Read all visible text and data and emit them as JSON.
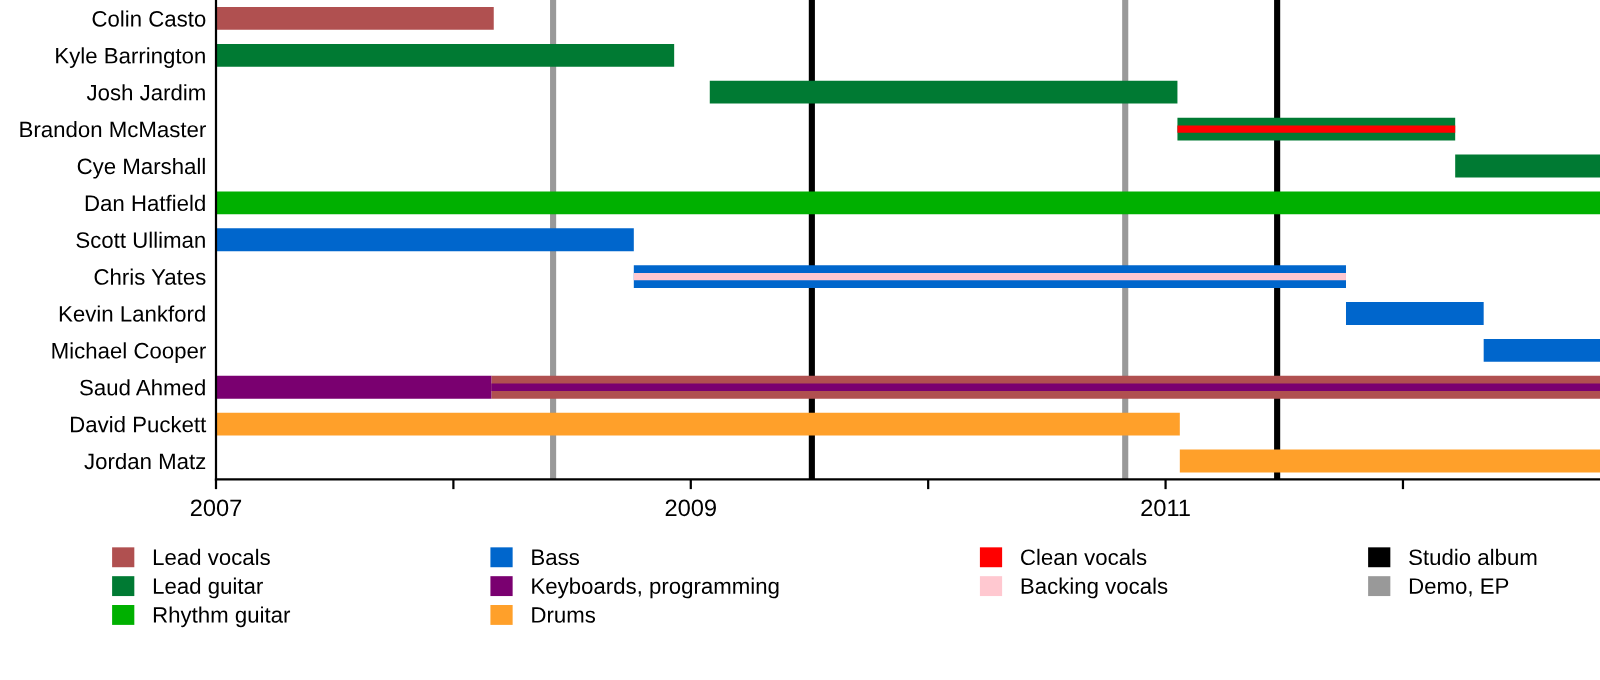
{
  "chart_data": {
    "type": "bar",
    "orientation": "horizontal",
    "categories": [
      "Colin Casto",
      "Kyle Barrington",
      "Josh Jardim",
      "Brandon McMaster",
      "Cye Marshall",
      "Dan Hatfield",
      "Scott Ulliman",
      "Chris Yates",
      "Kevin Lankford",
      "Michael Cooper",
      "Saud Ahmed",
      "David Puckett",
      "Jordan Matz"
    ],
    "series": [
      {
        "name": "Lead vocals",
        "color": "#b05050",
        "base": [
          2007,
          null,
          null,
          null,
          null,
          null,
          null,
          null,
          null,
          null,
          2008.16,
          null,
          null
        ],
        "values": [
          1.17,
          null,
          null,
          null,
          null,
          null,
          null,
          null,
          null,
          null,
          4.67,
          null,
          null
        ]
      },
      {
        "name": "Lead guitar",
        "color": "#007a33",
        "base": [
          null,
          2007,
          2009.08,
          2011.05,
          2012.22,
          null,
          null,
          null,
          null,
          null,
          null,
          null,
          null
        ],
        "values": [
          null,
          1.93,
          1.97,
          1.17,
          0.61,
          null,
          null,
          null,
          null,
          null,
          null,
          null,
          null
        ]
      },
      {
        "name": "Rhythm guitar",
        "color": "#00b000",
        "base": [
          null,
          null,
          null,
          null,
          null,
          2007,
          null,
          null,
          null,
          null,
          null,
          null,
          null
        ],
        "values": [
          null,
          null,
          null,
          null,
          null,
          5.83,
          null,
          null,
          null,
          null,
          null,
          null,
          null
        ]
      },
      {
        "name": "Bass",
        "color": "#0066cc",
        "base": [
          null,
          null,
          null,
          null,
          null,
          null,
          2007,
          2008.76,
          2011.76,
          2012.34,
          null,
          null,
          null
        ],
        "values": [
          null,
          null,
          null,
          null,
          null,
          null,
          1.76,
          3.0,
          0.58,
          0.49,
          null,
          null,
          null
        ]
      },
      {
        "name": "Keyboards, programming",
        "color": "#7a0070",
        "base": [
          null,
          null,
          null,
          null,
          null,
          null,
          null,
          null,
          null,
          null,
          2007,
          null,
          null
        ],
        "values": [
          null,
          null,
          null,
          null,
          null,
          null,
          null,
          null,
          null,
          null,
          1.16,
          null,
          null
        ]
      },
      {
        "name": "Drums",
        "color": "#ffa02a",
        "base": [
          null,
          null,
          null,
          null,
          null,
          null,
          null,
          null,
          null,
          null,
          null,
          2007,
          2011.06
        ],
        "values": [
          null,
          null,
          null,
          null,
          null,
          null,
          null,
          null,
          null,
          null,
          null,
          4.06,
          1.77
        ]
      },
      {
        "name": "Clean vocals",
        "color": "#ff0000",
        "base": [
          null,
          null,
          null,
          2011.05,
          null,
          null,
          null,
          null,
          null,
          null,
          null,
          null,
          null
        ],
        "values": [
          null,
          null,
          null,
          1.17,
          null,
          null,
          null,
          null,
          null,
          null,
          null,
          null,
          null
        ]
      },
      {
        "name": "Backing vocals",
        "color": "#ffc8d0",
        "base": [
          null,
          null,
          null,
          null,
          null,
          null,
          null,
          2008.76,
          null,
          null,
          null,
          null,
          null
        ],
        "values": [
          null,
          null,
          null,
          null,
          null,
          null,
          null,
          3.0,
          null,
          null,
          null,
          null,
          null
        ]
      },
      {
        "color": "#7a0070",
        "base": [
          null,
          null,
          null,
          null,
          null,
          null,
          null,
          null,
          null,
          null,
          2008.16,
          null,
          null
        ],
        "values": [
          null,
          null,
          null,
          null,
          null,
          null,
          null,
          null,
          null,
          null,
          4.67,
          null,
          null
        ]
      }
    ],
    "ref_lines": [
      {
        "axis": "x",
        "value": 2009.51,
        "label": "Studio album",
        "color": "#000000"
      },
      {
        "axis": "x",
        "value": 2011.47,
        "color": "#000000"
      },
      {
        "axis": "x",
        "value": 2008.42,
        "label": "Demo, EP",
        "color": "#999999"
      },
      {
        "axis": "x",
        "value": 2010.83,
        "color": "#999999"
      }
    ],
    "xlim": [
      2007,
      2012.83
    ],
    "xticks": [
      2007,
      {
        "value": 2008,
        "label": null
      },
      2009,
      {
        "value": 2010,
        "label": null
      },
      2011,
      {
        "value": 2012,
        "label": null
      }
    ],
    "grid": false,
    "legend": "bottom"
  }
}
